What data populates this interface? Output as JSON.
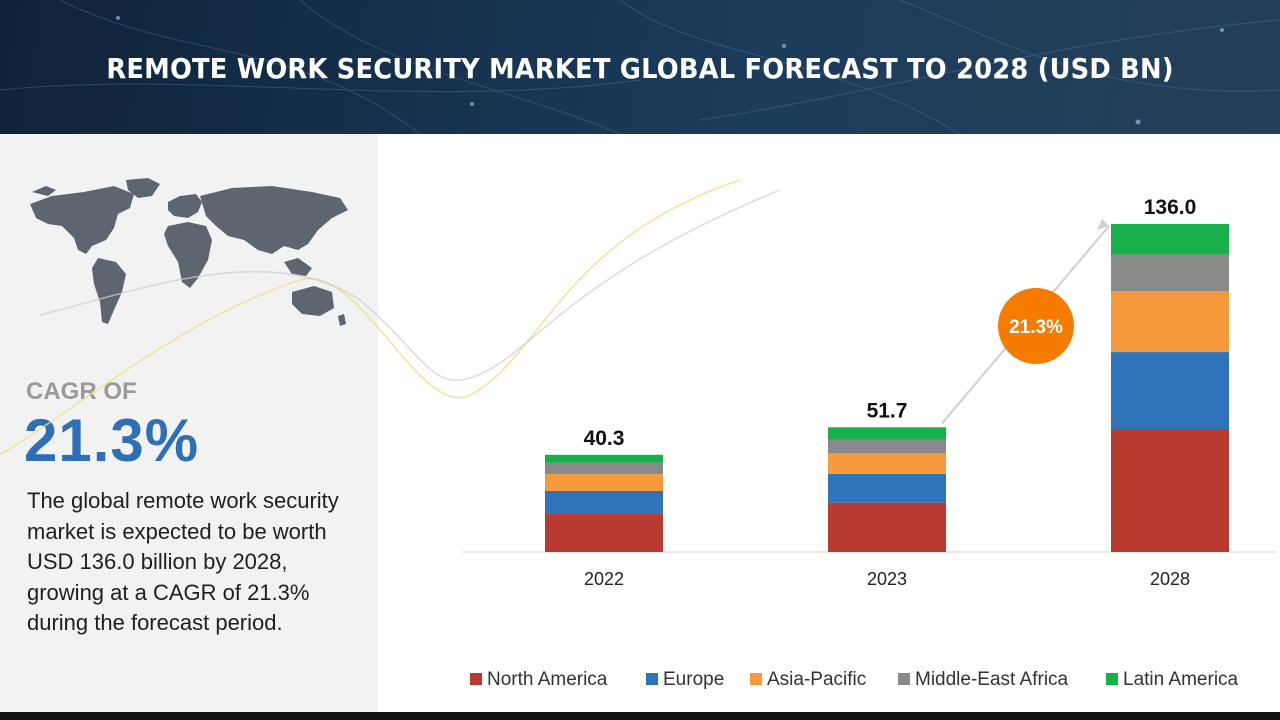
{
  "header": {
    "title": "REMOTE WORK SECURITY MARKET GLOBAL FORECAST TO 2028 (USD BN)"
  },
  "summary_panel": {
    "cagr_label": "CAGR OF",
    "cagr_value": "21.3%",
    "description": "The global remote work security market is expected to be worth USD 136.0 billion by 2028, growing at a CAGR of 21.3% during the forecast period."
  },
  "colors": {
    "north_america": "#b83a30",
    "europe": "#2f74b8",
    "asia_pacific": "#f79a3e",
    "middle_east_africa": "#8a8a8a",
    "latin_america": "#18b04a",
    "cagr_badge": "#f57c00",
    "cagr_value": "#2f6fb5"
  },
  "chart_data": {
    "type": "bar",
    "stacked": true,
    "categories": [
      "2022",
      "2023",
      "2028"
    ],
    "totals": [
      40.3,
      51.7,
      136.0
    ],
    "total_labels": [
      "40.3",
      "51.7",
      "136.0"
    ],
    "series": [
      {
        "name": "North America",
        "values": [
          16.0,
          20.4,
          51.0
        ]
      },
      {
        "name": "Europe",
        "values": [
          9.3,
          12.0,
          31.9
        ]
      },
      {
        "name": "Asia-Pacific",
        "values": [
          7.0,
          8.5,
          25.2
        ]
      },
      {
        "name": "Middle-East Africa",
        "values": [
          4.7,
          5.6,
          15.2
        ]
      },
      {
        "name": "Latin America",
        "values": [
          3.3,
          5.2,
          12.7
        ]
      }
    ],
    "annotation": "21.3%",
    "ylim": [
      0,
      136.0
    ],
    "legend_position": "bottom",
    "grid": false
  }
}
